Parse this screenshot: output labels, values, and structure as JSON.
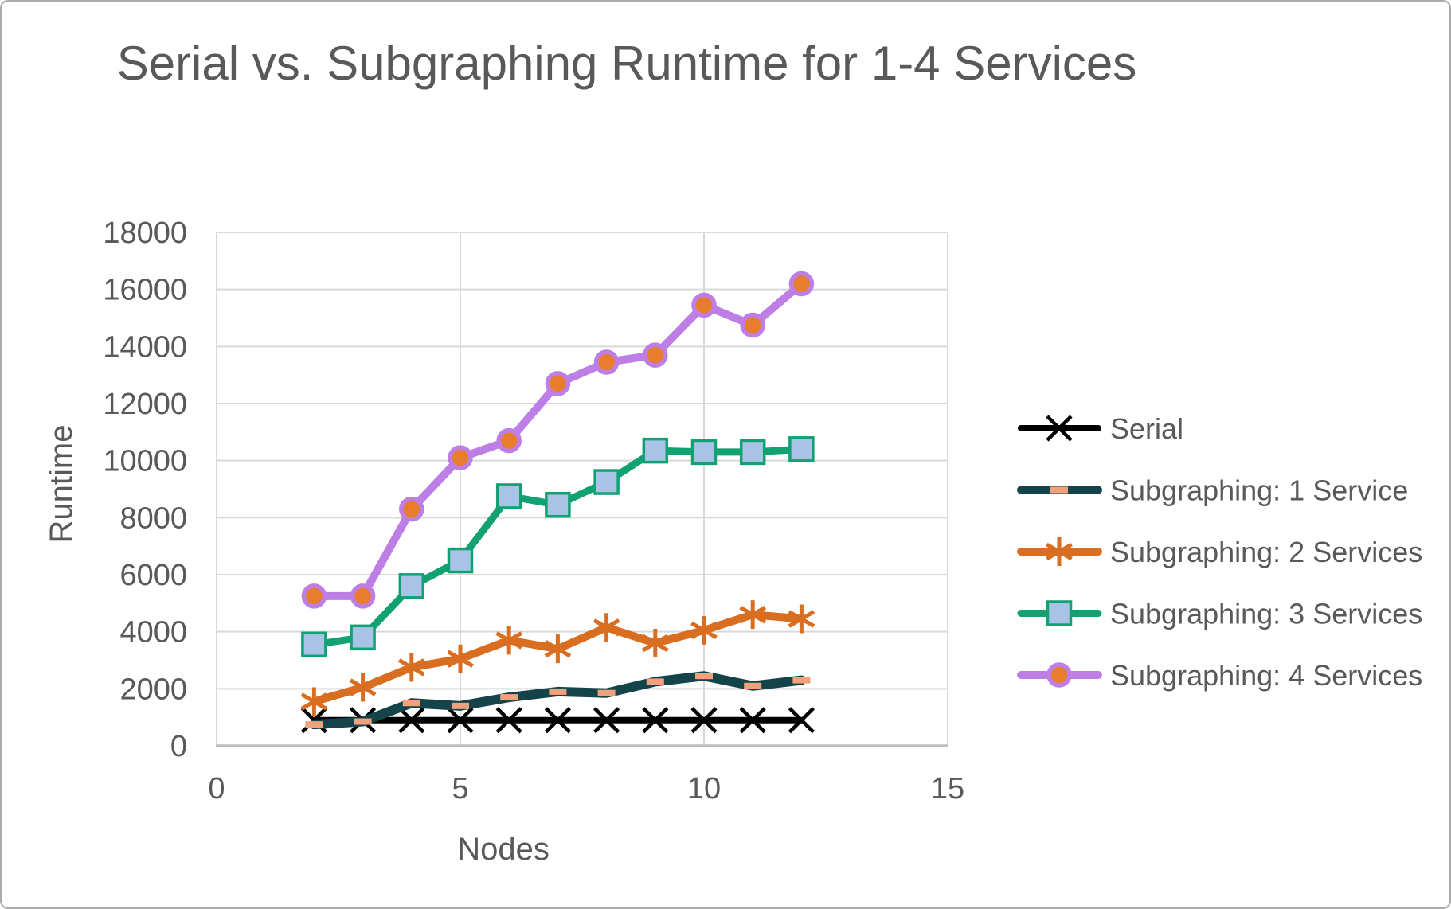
{
  "chart_data": {
    "type": "line",
    "title": "Serial vs. Subgraphing Runtime for 1-4 Services",
    "xlabel": "Nodes",
    "ylabel": "Runtime",
    "xlim": [
      0,
      15
    ],
    "ylim": [
      0,
      18000
    ],
    "x_ticks": [
      0,
      5,
      10,
      15
    ],
    "y_ticks": [
      0,
      2000,
      4000,
      6000,
      8000,
      10000,
      12000,
      14000,
      16000,
      18000
    ],
    "grid": true,
    "legend_position": "right",
    "x": [
      2,
      3,
      4,
      5,
      6,
      7,
      8,
      9,
      10,
      11,
      12
    ],
    "series": [
      {
        "name": "Serial",
        "marker": "x",
        "color": "#000000",
        "marker_fill": "#000000",
        "marker_stroke": "#000000",
        "values": [
          900,
          900,
          900,
          900,
          900,
          900,
          900,
          900,
          900,
          900,
          900
        ]
      },
      {
        "name": "Subgraphing: 1 Service",
        "marker": "dash",
        "color": "#15434a",
        "marker_fill": "#f1a17b",
        "marker_stroke": "#f1a17b",
        "values": [
          750,
          850,
          1500,
          1400,
          1700,
          1900,
          1850,
          2250,
          2450,
          2100,
          2300
        ]
      },
      {
        "name": "Subgraphing: 2 Services",
        "marker": "asterisk",
        "color": "#d96e20",
        "marker_fill": "#d96e20",
        "marker_stroke": "#d96e20",
        "values": [
          1550,
          2050,
          2750,
          3050,
          3700,
          3400,
          4150,
          3600,
          4050,
          4600,
          4450
        ]
      },
      {
        "name": "Subgraphing: 3 Services",
        "marker": "square",
        "color": "#12a172",
        "marker_fill": "#a9c3e6",
        "marker_stroke": "#12a172",
        "values": [
          3550,
          3800,
          5600,
          6500,
          8750,
          8450,
          9250,
          10350,
          10300,
          10300,
          10400
        ]
      },
      {
        "name": "Subgraphing: 4 Services",
        "marker": "circle",
        "color": "#bd7fe6",
        "marker_fill": "#e87d2e",
        "marker_stroke": "#bd7fe6",
        "values": [
          5250,
          5250,
          8300,
          10100,
          10700,
          12700,
          13450,
          13700,
          15450,
          14750,
          16200
        ]
      }
    ]
  },
  "colors": {
    "text_gray": "#595959",
    "gridline": "#d9d9d9",
    "axis_line": "#bfbfbf",
    "background": "#ffffff",
    "frame_border": "#ababab"
  }
}
